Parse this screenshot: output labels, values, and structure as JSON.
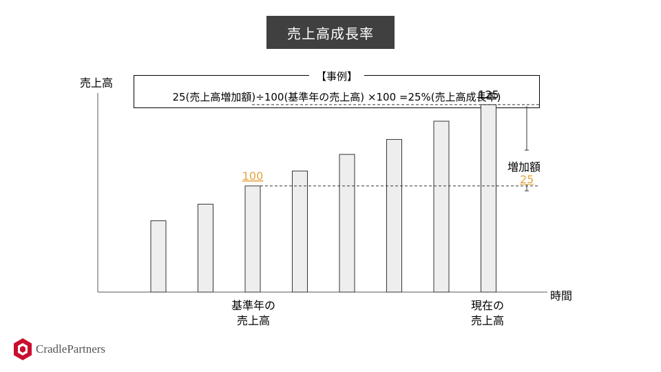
{
  "slide": {
    "title": "売上高成長率",
    "example_tag": "【事例】",
    "formula": "25(売上高増加額)÷100(基準年の売上高) ×100 =25%(売上高成長率)",
    "increase_label": "増加額",
    "increase_value": "25",
    "logo_text": "CradlePartners"
  },
  "chart_data": {
    "type": "bar",
    "ylabel": "売上高",
    "xlabel": "時間",
    "categories": [
      "",
      "",
      "基準年の\n売上高",
      "",
      "",
      "",
      "",
      "現在の\n売上高"
    ],
    "values": [
      43,
      53,
      64,
      73,
      83,
      92,
      103,
      113
    ],
    "data_labels": {
      "2": "100",
      "7": "125"
    },
    "ylim": [
      0,
      120
    ],
    "grid": false,
    "colors": {
      "bar_fill": "#eeeeee",
      "bar_stroke": "#333333",
      "highlight": "#e8a33d"
    }
  }
}
